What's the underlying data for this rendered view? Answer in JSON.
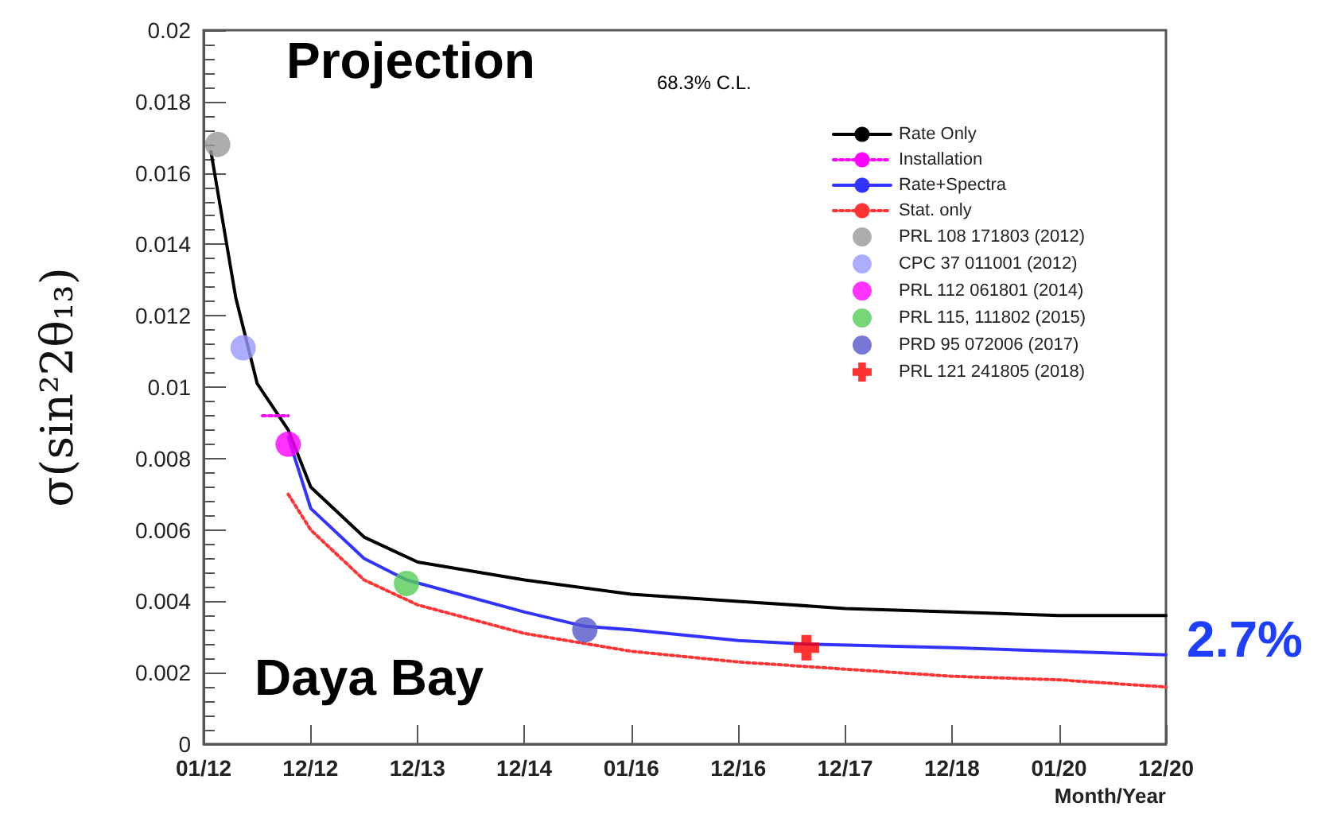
{
  "chart_data": {
    "type": "line",
    "xlabel": "Month/Year",
    "ylabel": "σ(sin²2θ₁₃)",
    "xlim": [
      "2012-01-01",
      "2020-12-31"
    ],
    "xticks": [
      {
        "value": "2012-01-01",
        "label": "01/12"
      },
      {
        "value": "2012-12-31",
        "label": "12/12"
      },
      {
        "value": "2013-12-31",
        "label": "12/13"
      },
      {
        "value": "2014-12-31",
        "label": "12/14"
      },
      {
        "value": "2016-01-01",
        "label": "01/16"
      },
      {
        "value": "2016-12-31",
        "label": "12/16"
      },
      {
        "value": "2017-12-31",
        "label": "12/17"
      },
      {
        "value": "2018-12-31",
        "label": "12/18"
      },
      {
        "value": "2020-01-01",
        "label": "01/20"
      },
      {
        "value": "2020-12-31",
        "label": "12/20"
      }
    ],
    "ylim": [
      0,
      0.02
    ],
    "yticks": [
      0,
      0.002,
      0.004,
      0.006,
      0.008,
      0.01,
      0.012,
      0.014,
      0.016,
      0.018,
      0.02
    ],
    "grid": false,
    "legend": "top right",
    "annotations": [
      "Projection",
      "68.3% C.L.",
      "Daya Bay",
      "2.7%"
    ],
    "series": [
      {
        "name": "Rate Only",
        "color": "#000000",
        "line_style": "solid",
        "x": [
          "2012-01-26",
          "2012-04-20",
          "2012-07-02",
          "2012-10-16",
          "2013-01-01",
          "2013-07-02",
          "2014-01-01",
          "2015-01-01",
          "2016-01-01",
          "2017-01-01",
          "2018-01-01",
          "2019-01-01",
          "2020-01-01",
          "2020-12-31"
        ],
        "values": [
          0.0166,
          0.0125,
          0.0101,
          0.0088,
          0.0072,
          0.0058,
          0.0051,
          0.0046,
          0.0042,
          0.004,
          0.0038,
          0.0037,
          0.0036,
          0.0036
        ]
      },
      {
        "name": "Installation",
        "color": "#ff00ff",
        "line_style": "dotted",
        "x": [
          "2012-07-20",
          "2012-10-16"
        ],
        "values": [
          0.0092,
          0.0092
        ]
      },
      {
        "name": "Rate+Spectra",
        "color": "#3333ff",
        "line_style": "solid",
        "x": [
          "2012-10-16",
          "2013-01-01",
          "2013-07-02",
          "2013-11-24",
          "2015-01-01",
          "2015-07-26",
          "2016-01-01",
          "2017-01-01",
          "2017-08-21",
          "2019-01-01",
          "2020-01-01",
          "2020-12-31"
        ],
        "values": [
          0.0086,
          0.0066,
          0.0052,
          0.0046,
          0.0037,
          0.0033,
          0.0032,
          0.0029,
          0.0028,
          0.0027,
          0.0026,
          0.0025
        ]
      },
      {
        "name": "Stat. only",
        "color": "#ff3333",
        "line_style": "dotted",
        "x": [
          "2012-10-16",
          "2013-01-01",
          "2013-07-02",
          "2014-01-01",
          "2015-01-01",
          "2016-01-01",
          "2017-01-01",
          "2018-01-01",
          "2019-01-01",
          "2020-01-01",
          "2020-12-31"
        ],
        "values": [
          0.007,
          0.006,
          0.0046,
          0.0039,
          0.0031,
          0.0026,
          0.0023,
          0.0021,
          0.0019,
          0.0018,
          0.0016
        ]
      },
      {
        "name": "PRL 108 171803 (2012)",
        "type": "scatter",
        "marker": "circle",
        "color": "#999999",
        "x": [
          "2012-02-18"
        ],
        "values": [
          0.0168
        ]
      },
      {
        "name": "CPC 37 011001 (2012)",
        "type": "scatter",
        "marker": "circle",
        "color": "#9999ff",
        "x": [
          "2012-05-15"
        ],
        "values": [
          0.0111
        ]
      },
      {
        "name": "PRL 112 061801 (2014)",
        "type": "scatter",
        "marker": "circle",
        "color": "#ff00ff",
        "x": [
          "2012-10-16"
        ],
        "values": [
          0.0084
        ]
      },
      {
        "name": "PRL 115, 111802 (2015)",
        "type": "scatter",
        "marker": "circle",
        "color": "#55cc55",
        "x": [
          "2013-11-24"
        ],
        "values": [
          0.0045
        ]
      },
      {
        "name": "PRD 95 072006 (2017)",
        "type": "scatter",
        "marker": "circle",
        "color": "#5555cc",
        "x": [
          "2015-07-26"
        ],
        "values": [
          0.0032
        ]
      },
      {
        "name": "PRL 121 241805 (2018)",
        "type": "scatter",
        "marker": "cross",
        "color": "#ff0000",
        "x": [
          "2017-08-21"
        ],
        "values": [
          0.0027
        ]
      }
    ]
  }
}
